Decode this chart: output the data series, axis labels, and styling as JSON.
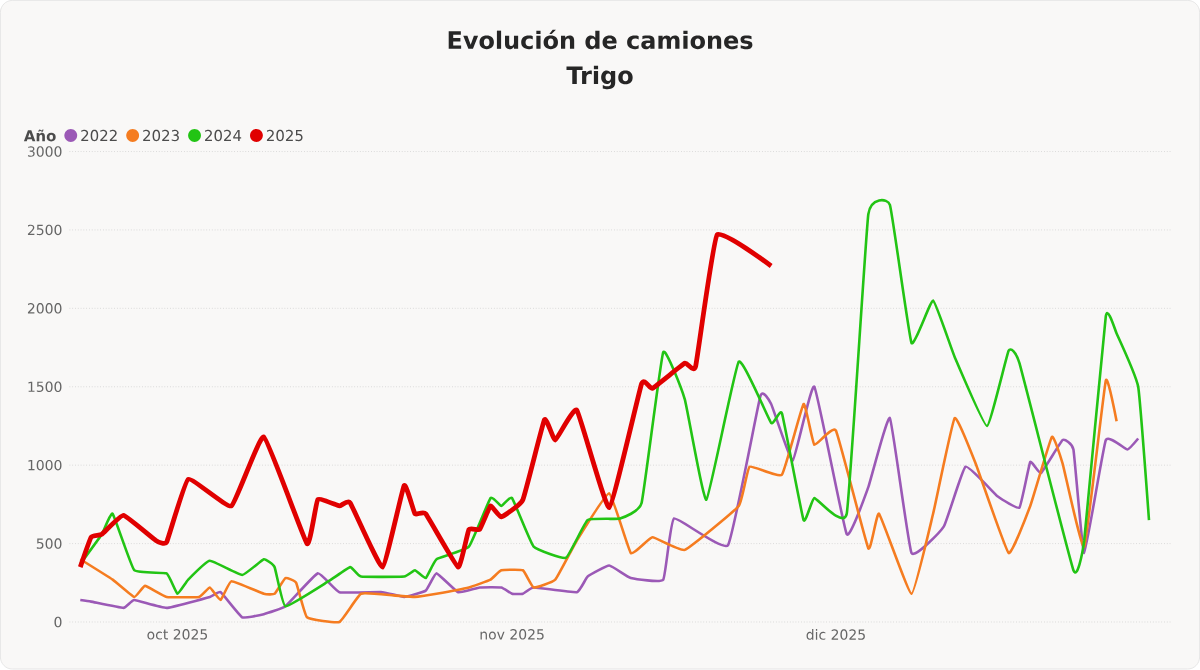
{
  "chart_data": {
    "type": "line",
    "title": "Evolución de camiones",
    "subtitle": "Trigo",
    "legend_title": "Año",
    "legend": "top left",
    "grid": "y",
    "xlim": [
      "2025-09-21",
      "2026-01-01"
    ],
    "ylim": [
      0,
      3000
    ],
    "yticks": [
      0,
      500,
      1000,
      1500,
      2000,
      2500,
      3000
    ],
    "xticks": [
      {
        "value": "2025-10-01",
        "label": "oct 2025"
      },
      {
        "value": "2025-11-01",
        "label": "nov 2025"
      },
      {
        "value": "2025-12-01",
        "label": "dic 2025"
      }
    ],
    "series": [
      {
        "name": "2022",
        "color": "#9b59b6",
        "x": [
          "2025-09-22",
          "2025-09-23",
          "2025-09-26",
          "2025-09-27",
          "2025-09-30",
          "2025-10-04",
          "2025-10-05",
          "2025-10-07",
          "2025-10-09",
          "2025-10-11",
          "2025-10-14",
          "2025-10-16",
          "2025-10-20",
          "2025-10-22",
          "2025-10-24",
          "2025-10-25",
          "2025-10-27",
          "2025-10-29",
          "2025-10-31",
          "2025-11-01",
          "2025-11-02",
          "2025-11-03",
          "2025-11-07",
          "2025-11-08",
          "2025-11-10",
          "2025-11-12",
          "2025-11-15",
          "2025-11-16",
          "2025-11-21",
          "2025-11-24",
          "2025-11-25",
          "2025-11-27",
          "2025-11-29",
          "2025-12-02",
          "2025-12-04",
          "2025-12-06",
          "2025-12-08",
          "2025-12-11",
          "2025-12-13",
          "2025-12-16",
          "2025-12-18",
          "2025-12-19",
          "2025-12-20",
          "2025-12-22",
          "2025-12-23",
          "2025-12-24",
          "2025-12-26",
          "2025-12-28",
          "2025-12-29"
        ],
        "values": [
          140,
          130,
          90,
          140,
          90,
          160,
          190,
          30,
          50,
          100,
          310,
          190,
          190,
          160,
          200,
          310,
          190,
          220,
          220,
          180,
          180,
          220,
          190,
          290,
          360,
          280,
          270,
          660,
          490,
          1440,
          1390,
          1030,
          1500,
          560,
          860,
          1300,
          440,
          610,
          990,
          800,
          730,
          1020,
          950,
          1160,
          1100,
          440,
          1160,
          1100,
          1170
        ]
      },
      {
        "name": "2023",
        "color": "#f57c20",
        "x": [
          "2025-09-22",
          "2025-09-25",
          "2025-09-27",
          "2025-09-28",
          "2025-09-30",
          "2025-10-03",
          "2025-10-04",
          "2025-10-05",
          "2025-10-06",
          "2025-10-09",
          "2025-10-10",
          "2025-10-11",
          "2025-10-12",
          "2025-10-13",
          "2025-10-16",
          "2025-10-18",
          "2025-10-21",
          "2025-10-23",
          "2025-10-25",
          "2025-10-28",
          "2025-10-30",
          "2025-10-31",
          "2025-11-02",
          "2025-11-03",
          "2025-11-05",
          "2025-11-07",
          "2025-11-10",
          "2025-11-12",
          "2025-11-14",
          "2025-11-17",
          "2025-11-22",
          "2025-11-23",
          "2025-11-26",
          "2025-11-28",
          "2025-11-29",
          "2025-12-01",
          "2025-12-04",
          "2025-12-05",
          "2025-12-08",
          "2025-12-10",
          "2025-12-12",
          "2025-12-14",
          "2025-12-17",
          "2025-12-19",
          "2025-12-21",
          "2025-12-22",
          "2025-12-24",
          "2025-12-26",
          "2025-12-27"
        ],
        "values": [
          400,
          270,
          160,
          230,
          160,
          160,
          220,
          140,
          260,
          180,
          180,
          280,
          250,
          30,
          0,
          180,
          170,
          160,
          180,
          220,
          270,
          330,
          330,
          220,
          270,
          520,
          820,
          440,
          540,
          460,
          740,
          990,
          940,
          1390,
          1130,
          1220,
          470,
          690,
          180,
          690,
          1300,
          1000,
          440,
          740,
          1180,
          1010,
          480,
          1540,
          1280
        ]
      },
      {
        "name": "2024",
        "color": "#22c414",
        "x": [
          "2025-09-22",
          "2025-09-24",
          "2025-09-25",
          "2025-09-27",
          "2025-09-30",
          "2025-10-01",
          "2025-10-02",
          "2025-10-04",
          "2025-10-07",
          "2025-10-09",
          "2025-10-10",
          "2025-10-11",
          "2025-10-15",
          "2025-10-17",
          "2025-10-18",
          "2025-10-22",
          "2025-10-23",
          "2025-10-24",
          "2025-10-25",
          "2025-10-28",
          "2025-10-30",
          "2025-10-31",
          "2025-11-01",
          "2025-11-03",
          "2025-11-06",
          "2025-11-08",
          "2025-11-11",
          "2025-11-13",
          "2025-11-15",
          "2025-11-17",
          "2025-11-19",
          "2025-11-22",
          "2025-11-25",
          "2025-11-26",
          "2025-11-28",
          "2025-11-29",
          "2025-12-02",
          "2025-12-04",
          "2025-12-06",
          "2025-12-08",
          "2025-12-10",
          "2025-12-12",
          "2025-12-15",
          "2025-12-17",
          "2025-12-18",
          "2025-12-23",
          "2025-12-24",
          "2025-12-26",
          "2025-12-27",
          "2025-12-29",
          "2025-12-30"
        ],
        "values": [
          370,
          560,
          690,
          330,
          310,
          180,
          270,
          390,
          300,
          400,
          350,
          100,
          260,
          350,
          290,
          290,
          330,
          280,
          400,
          480,
          790,
          740,
          790,
          480,
          410,
          650,
          660,
          760,
          1720,
          1420,
          780,
          1660,
          1270,
          1330,
          650,
          790,
          690,
          2600,
          2660,
          1780,
          2050,
          1690,
          1250,
          1730,
          1650,
          330,
          520,
          1950,
          1840,
          1500,
          650
        ]
      },
      {
        "name": "2025",
        "color": "#e00000",
        "x": [
          "2025-09-22",
          "2025-09-23",
          "2025-09-24",
          "2025-09-26",
          "2025-09-29",
          "2025-09-30",
          "2025-10-02",
          "2025-10-06",
          "2025-10-09",
          "2025-10-13",
          "2025-10-14",
          "2025-10-16",
          "2025-10-17",
          "2025-10-20",
          "2025-10-22",
          "2025-10-23",
          "2025-10-24",
          "2025-10-27",
          "2025-10-28",
          "2025-10-29",
          "2025-10-30",
          "2025-10-31",
          "2025-11-02",
          "2025-11-04",
          "2025-11-05",
          "2025-11-07",
          "2025-11-10",
          "2025-11-13",
          "2025-11-14",
          "2025-11-17",
          "2025-11-18",
          "2025-11-20",
          "2025-11-25"
        ],
        "values": [
          350,
          540,
          560,
          680,
          520,
          510,
          910,
          740,
          1180,
          500,
          780,
          740,
          760,
          350,
          870,
          690,
          690,
          350,
          590,
          590,
          740,
          670,
          780,
          1290,
          1160,
          1350,
          730,
          1520,
          1490,
          1650,
          1630,
          2470,
          2270
        ]
      }
    ]
  }
}
